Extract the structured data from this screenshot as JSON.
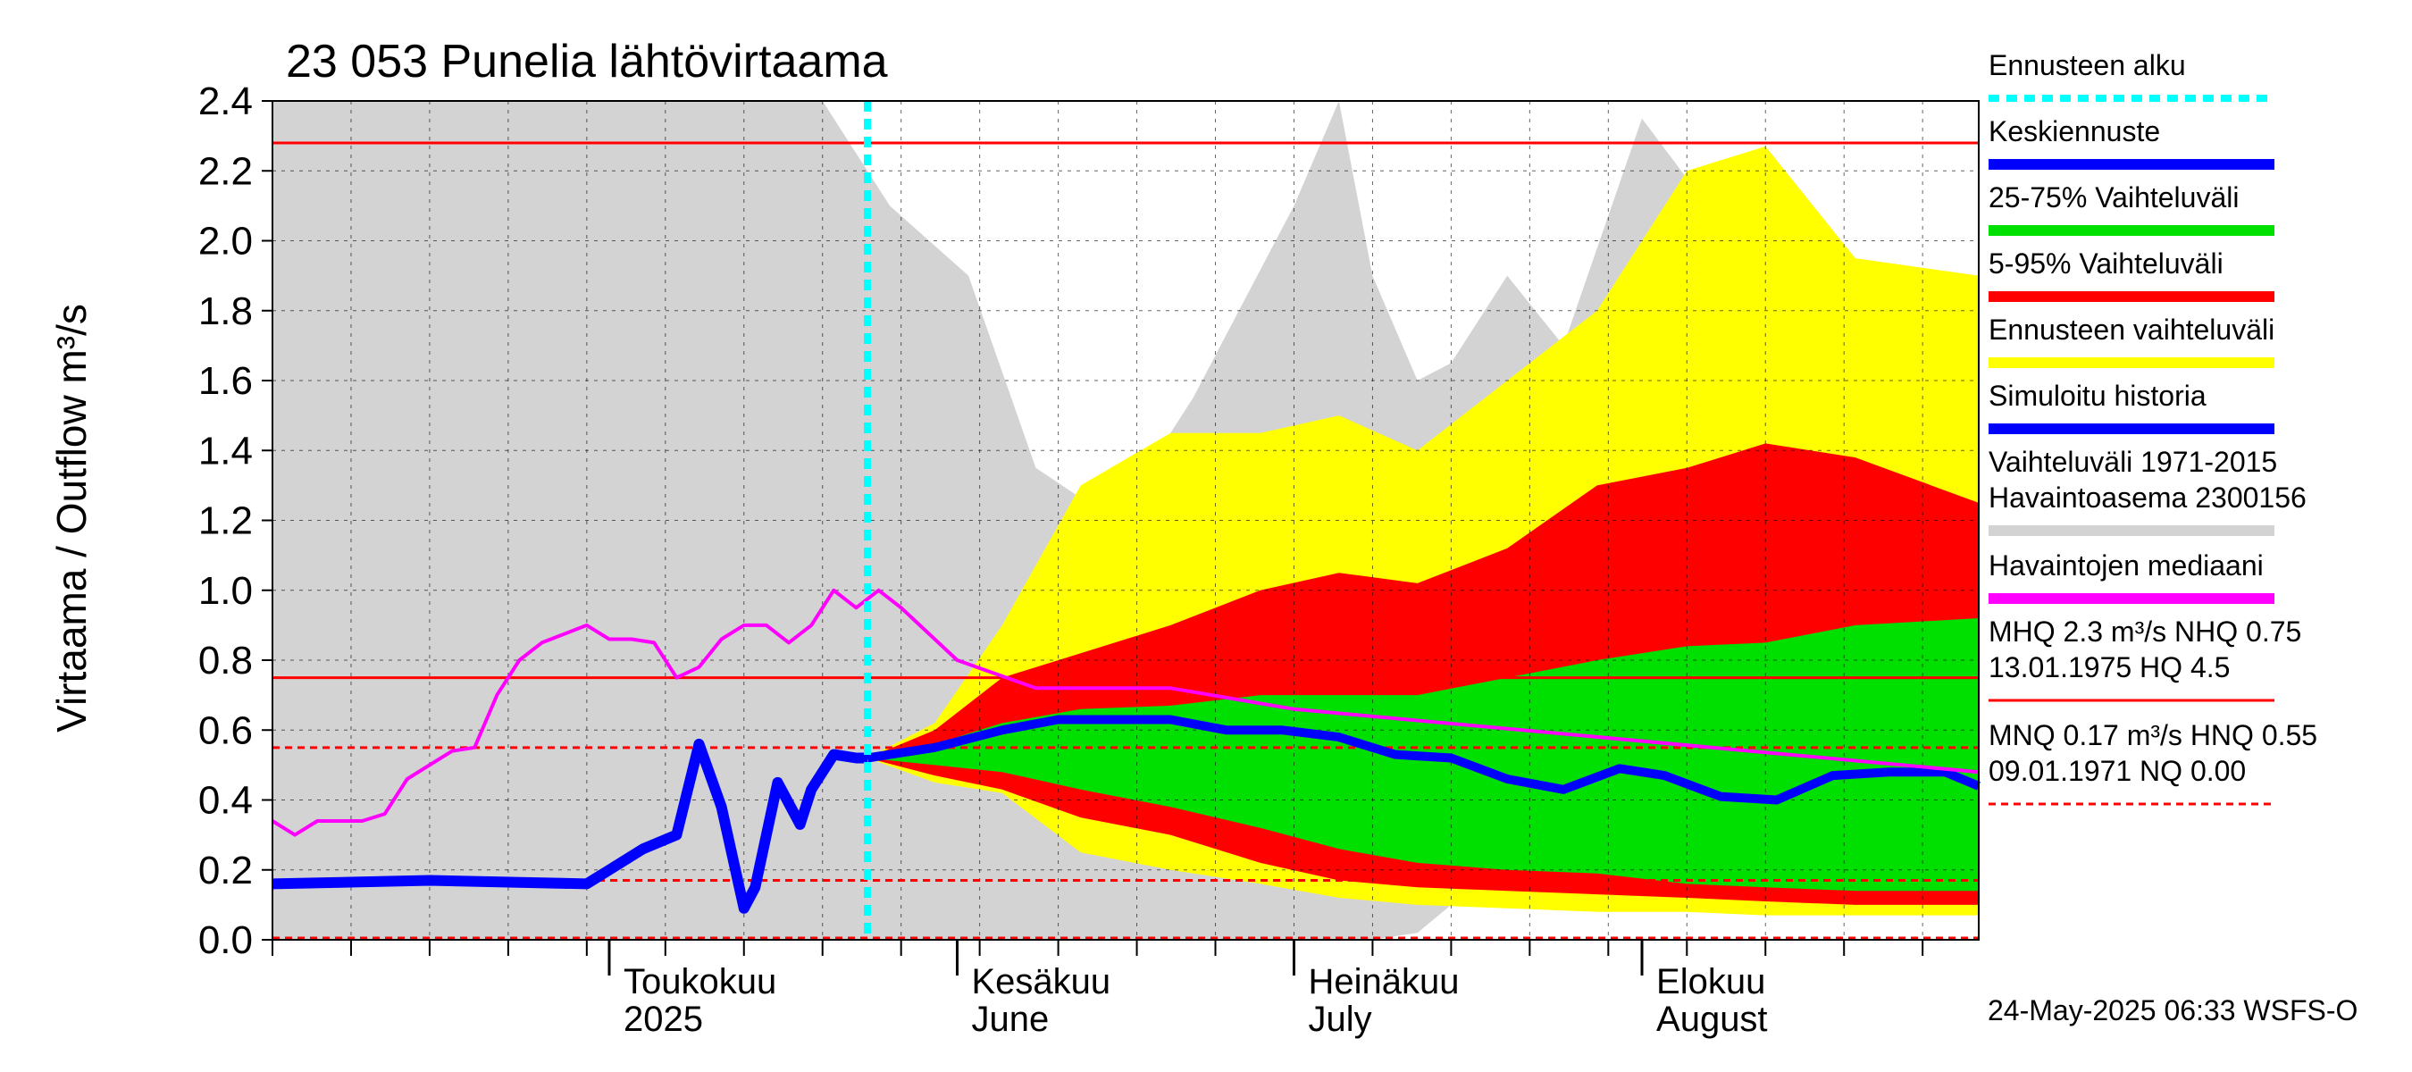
{
  "chart_data": {
    "type": "area",
    "title": "23 053 Punelia lähtövirtaama",
    "ylabel": "Virtaama / Outflow    m³/s",
    "ylim": [
      0,
      2.4
    ],
    "yticks": [
      "0.0",
      "0.2",
      "0.4",
      "0.6",
      "0.8",
      "1.0",
      "1.2",
      "1.4",
      "1.6",
      "1.8",
      "2.0",
      "2.2",
      "2.4"
    ],
    "x_range_days": [
      "2025-04-01",
      "2025-08-31"
    ],
    "month_labels": [
      {
        "fi": "Toukokuu",
        "en": "2025",
        "date": "2025-05-01"
      },
      {
        "fi": "Kesäkuu",
        "en": "June",
        "date": "2025-06-01"
      },
      {
        "fi": "Heinäkuu",
        "en": "July",
        "date": "2025-07-01"
      },
      {
        "fi": "Elokuu",
        "en": "August",
        "date": "2025-08-01"
      }
    ],
    "forecast_start": "2025-05-24",
    "grid": true,
    "reference_lines": [
      {
        "label": "MHQ",
        "value": 2.28,
        "style": "solid",
        "color": "#ff0000"
      },
      {
        "label": "NHQ",
        "value": 0.75,
        "style": "solid",
        "color": "#ff0000"
      },
      {
        "label": "MNQ",
        "value": 0.17,
        "style": "dashed",
        "color": "#ff0000"
      },
      {
        "label": "HNQ",
        "value": 0.55,
        "style": "dashed",
        "color": "#ff0000"
      },
      {
        "label": "NQ",
        "value": 0.0,
        "style": "dashed",
        "color": "#ff0000"
      }
    ],
    "series": [
      {
        "name": "Simuloitu historia",
        "color": "#0000ff",
        "x": [
          "2025-04-01",
          "2025-04-15",
          "2025-04-29",
          "2025-05-01",
          "2025-05-04",
          "2025-05-07",
          "2025-05-09",
          "2025-05-11",
          "2025-05-13",
          "2025-05-14",
          "2025-05-16",
          "2025-05-18",
          "2025-05-19",
          "2025-05-21",
          "2025-05-23",
          "2025-05-24"
        ],
        "values": [
          0.16,
          0.17,
          0.16,
          0.2,
          0.26,
          0.3,
          0.56,
          0.38,
          0.09,
          0.15,
          0.45,
          0.33,
          0.43,
          0.53,
          0.52,
          0.52
        ]
      },
      {
        "name": "Keskiennuste",
        "color": "#0000ff",
        "x": [
          "2025-05-24",
          "2025-05-30",
          "2025-06-05",
          "2025-06-10",
          "2025-06-15",
          "2025-06-20",
          "2025-06-25",
          "2025-06-30",
          "2025-07-05",
          "2025-07-10",
          "2025-07-15",
          "2025-07-20",
          "2025-07-25",
          "2025-07-30",
          "2025-08-03",
          "2025-08-08",
          "2025-08-13",
          "2025-08-18",
          "2025-08-23",
          "2025-08-28",
          "2025-08-31"
        ],
        "values": [
          0.52,
          0.55,
          0.6,
          0.63,
          0.63,
          0.63,
          0.6,
          0.6,
          0.58,
          0.53,
          0.52,
          0.46,
          0.43,
          0.49,
          0.47,
          0.41,
          0.4,
          0.47,
          0.48,
          0.48,
          0.44
        ]
      },
      {
        "name": "Havaintojen mediaani",
        "color": "#ff00ff",
        "x": [
          "2025-04-01",
          "2025-04-03",
          "2025-04-05",
          "2025-04-09",
          "2025-04-11",
          "2025-04-13",
          "2025-04-17",
          "2025-04-19",
          "2025-04-21",
          "2025-04-23",
          "2025-04-25",
          "2025-04-29",
          "2025-05-01",
          "2025-05-03",
          "2025-05-05",
          "2025-05-07",
          "2025-05-09",
          "2025-05-11",
          "2025-05-13",
          "2025-05-15",
          "2025-05-17",
          "2025-05-19",
          "2025-05-21",
          "2025-05-23",
          "2025-05-25",
          "2025-05-27",
          "2025-06-01",
          "2025-06-08",
          "2025-06-20",
          "2025-07-01",
          "2025-08-31"
        ],
        "values": [
          0.34,
          0.3,
          0.34,
          0.34,
          0.36,
          0.46,
          0.54,
          0.55,
          0.7,
          0.8,
          0.85,
          0.9,
          0.86,
          0.86,
          0.85,
          0.75,
          0.78,
          0.86,
          0.9,
          0.9,
          0.85,
          0.9,
          1.0,
          0.95,
          1.0,
          0.95,
          0.8,
          0.72,
          0.72,
          0.66,
          0.48
        ]
      }
    ],
    "bands": [
      {
        "name": "Vaihteluväli 1971-2015 Havaintoasema 2300156",
        "color": "#d3d3d3"
      },
      {
        "name": "Ennusteen vaihteluväli",
        "color": "#ffff00"
      },
      {
        "name": "5-95% Vaihteluväli",
        "color": "#ff0000"
      },
      {
        "name": "25-75% Vaihteluväli",
        "color": "#00e000"
      }
    ]
  },
  "legend": {
    "items": [
      {
        "label": "Ennusteen alku",
        "color": "#00ffff",
        "style": "dotted"
      },
      {
        "label": "Keskiennuste",
        "color": "#0000ff",
        "style": "solid"
      },
      {
        "label": "25-75% Vaihteluväli",
        "color": "#00e000",
        "style": "solid"
      },
      {
        "label": "5-95% Vaihteluväli",
        "color": "#ff0000",
        "style": "solid"
      },
      {
        "label": "Ennusteen vaihteluväli",
        "color": "#ffff00",
        "style": "solid"
      },
      {
        "label": "Simuloitu historia",
        "color": "#0000ff",
        "style": "solid"
      },
      {
        "label": "Vaihteluväli 1971-2015",
        "label2": " Havaintoasema 2300156",
        "color": "#d3d3d3",
        "style": "solid"
      },
      {
        "label": "Havaintojen mediaani",
        "color": "#ff00ff",
        "style": "solid"
      },
      {
        "label": "MHQ  2.3 m³/s NHQ 0.75",
        "label2": "13.01.1975 HQ  4.5",
        "color": "#ff0000",
        "style": "thin"
      },
      {
        "label": "MNQ 0.17 m³/s HNQ 0.55",
        "label2": "09.01.1971 NQ 0.00",
        "color": "#ff0000",
        "style": "dashed"
      }
    ]
  },
  "footer": "24-May-2025 06:33 WSFS-O"
}
